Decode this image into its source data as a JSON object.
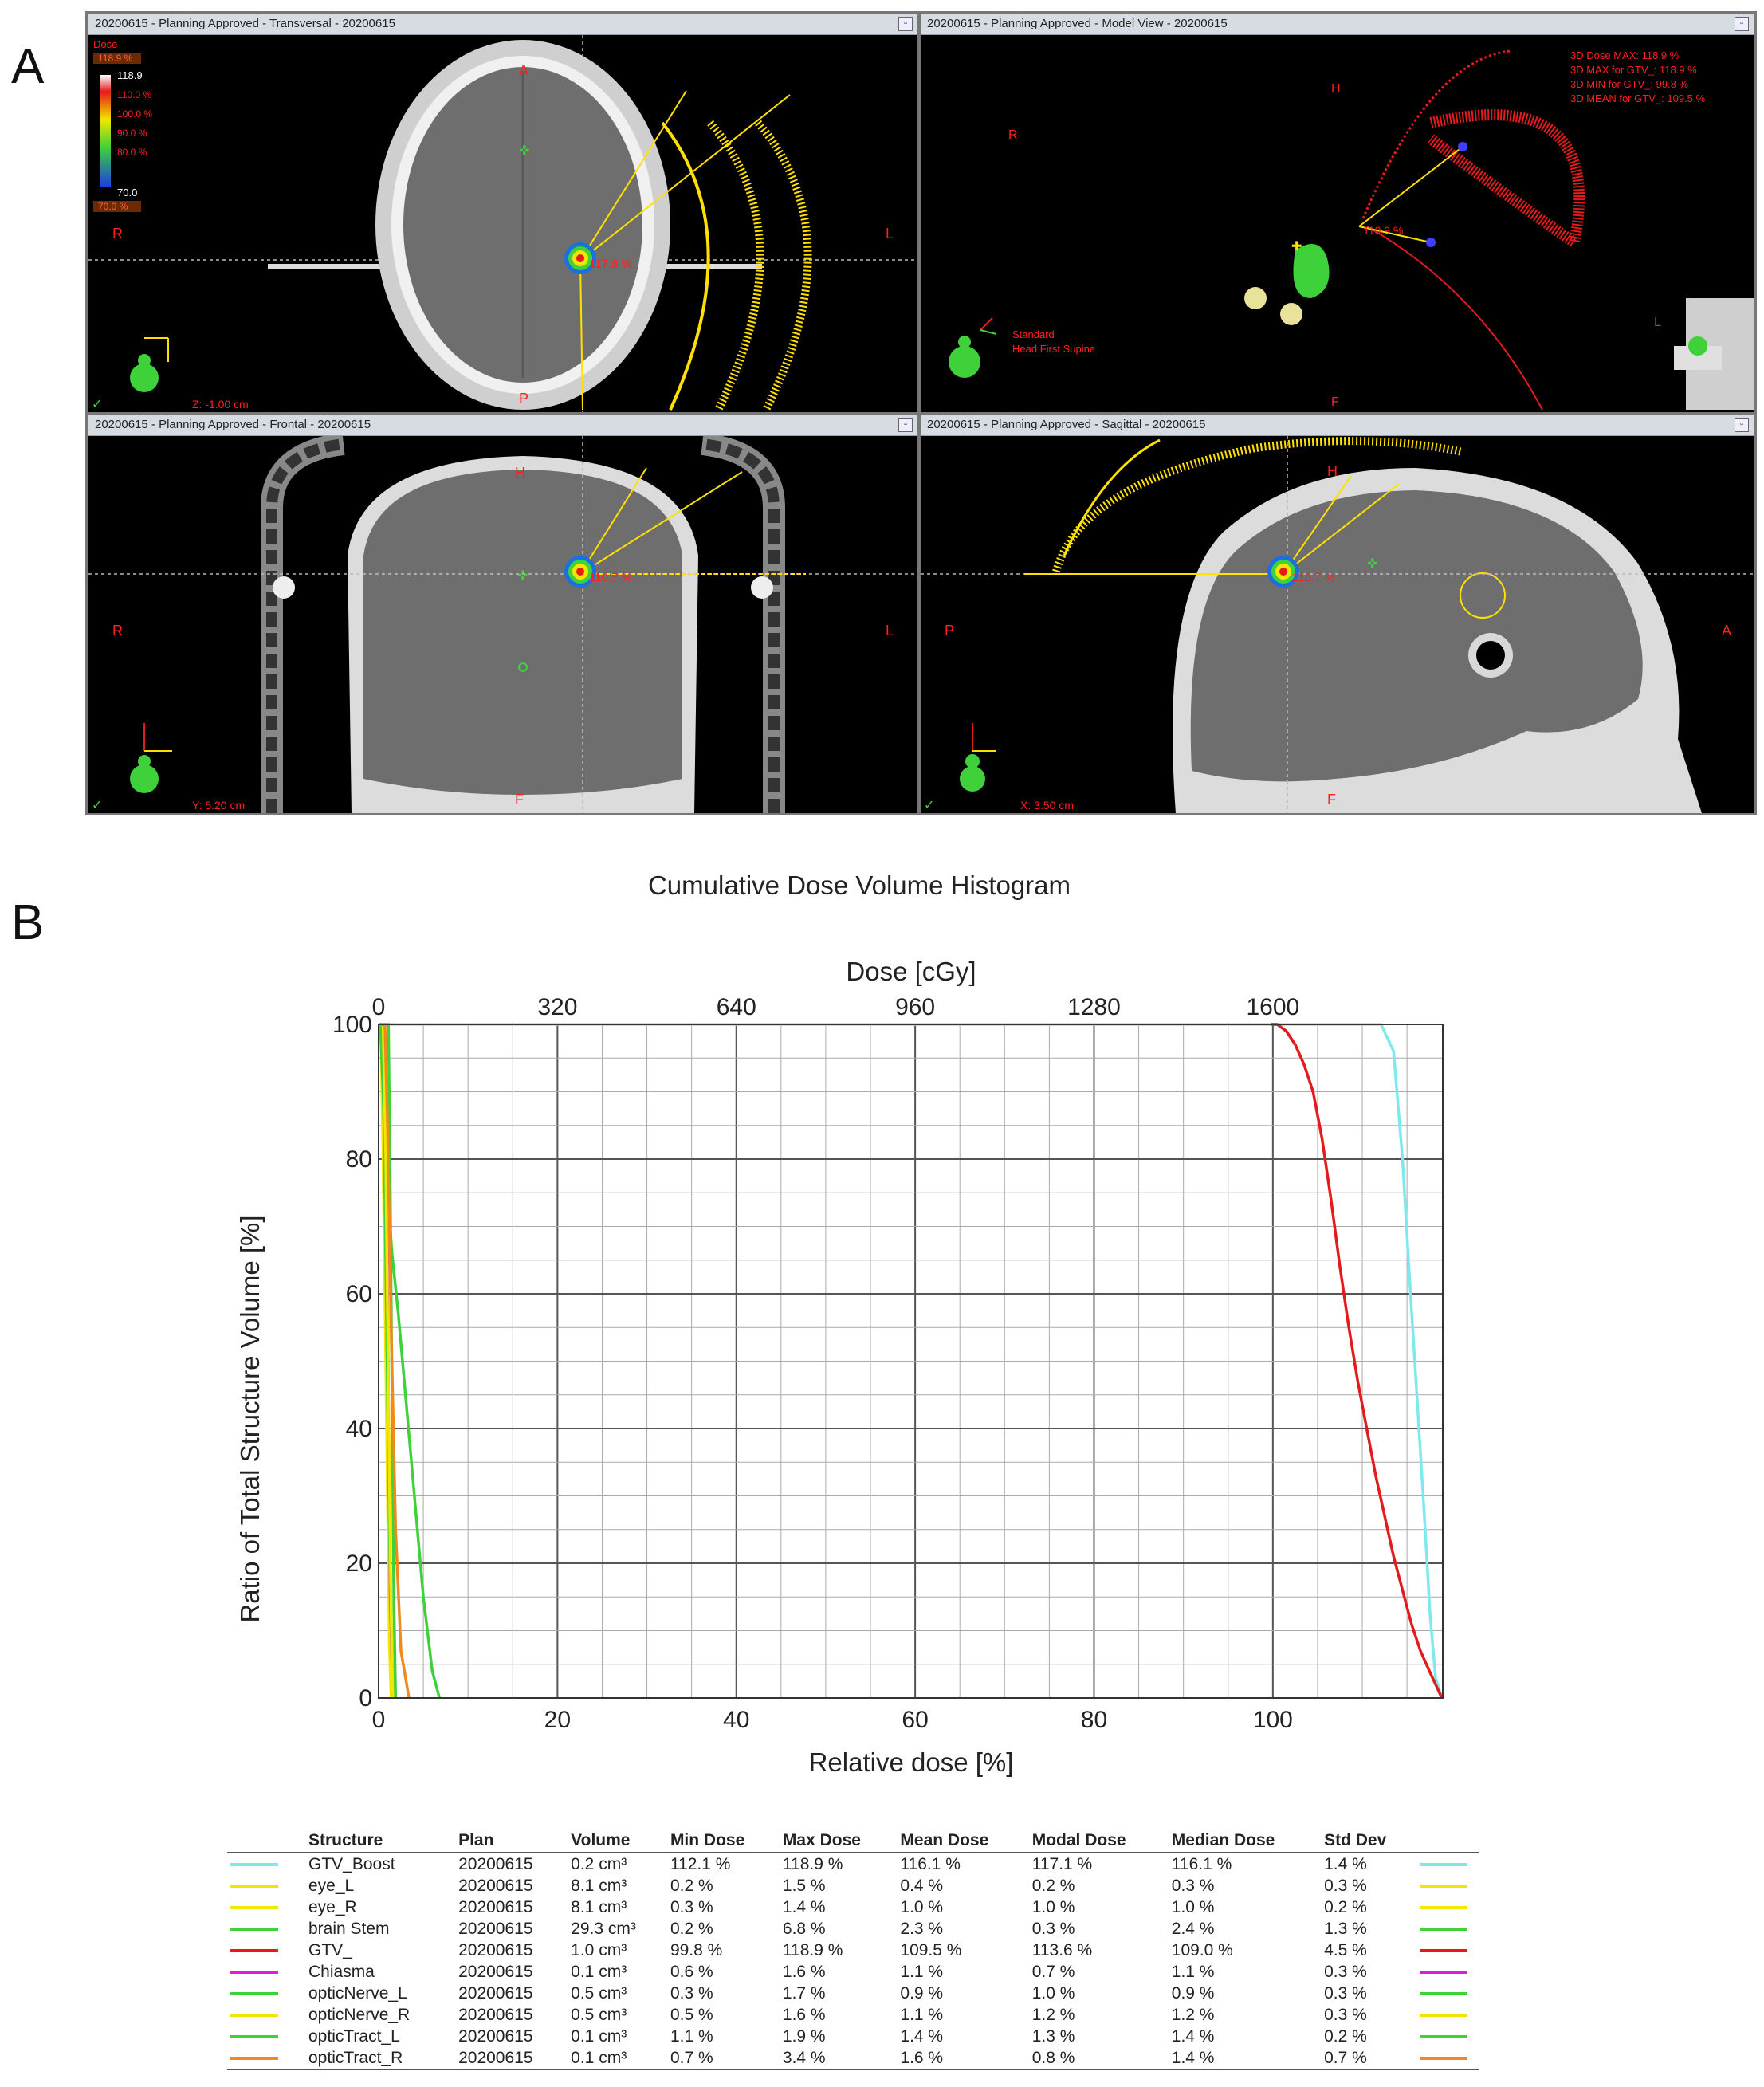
{
  "panel_labels": {
    "a": "A",
    "b": "B"
  },
  "views": [
    {
      "title": "20200615  -  Planning Approved - Transversal - 20200615",
      "orient": [
        "A",
        "P",
        "R",
        "L"
      ],
      "readout": "Z: -1.00 cm",
      "dose_label": "117.8 %"
    },
    {
      "title": "20200615  -  Planning Approved - Model View - 20200615",
      "orient": [
        "H",
        "F",
        "R",
        "L"
      ],
      "readout": "",
      "dose_label": "110.9 %"
    },
    {
      "title": "20200615  -  Planning Approved - Frontal - 20200615",
      "orient": [
        "H",
        "F",
        "R",
        "L"
      ],
      "readout": "Y: 5.20 cm",
      "dose_label": "110.7 %"
    },
    {
      "title": "20200615  -  Planning Approved - Sagittal - 20200615",
      "orient": [
        "H",
        "F",
        "P",
        "A"
      ],
      "readout": "X: 3.50 cm",
      "dose_label": "110.7 %"
    }
  ],
  "dose_legend": {
    "title": "Dose",
    "entries": [
      "118.9 %",
      "118.9",
      "110.0 %",
      "100.0 %",
      "90.0 %",
      "80.0 %",
      "70.0",
      "70.0 %"
    ]
  },
  "model_view_stats": [
    "3D Dose MAX: 118.9 %",
    "3D MAX for GTV_: 118.9 %",
    "3D MIN for GTV_: 99.8 %",
    "3D MEAN for GTV_: 109.5 %"
  ],
  "orientation_text": [
    "Standard",
    "Head First Supine"
  ],
  "colors": {
    "cyan": "#7de8ee",
    "red": "#e41a1c",
    "yellow": "#f2e600",
    "green": "#3fd13a",
    "magenta": "#e21bd6",
    "orange": "#f08a1c"
  },
  "chart_data": {
    "type": "line",
    "title": "Cumulative Dose Volume Histogram",
    "xlabel": "Relative dose [%]",
    "ylabel": "Ratio of Total Structure Volume [%]",
    "x2label": "Dose [cGy]",
    "xlim": [
      0,
      119
    ],
    "ylim": [
      0,
      100
    ],
    "x_ticks": [
      0,
      20,
      40,
      60,
      80,
      100
    ],
    "y_ticks": [
      0,
      20,
      40,
      60,
      80,
      100
    ],
    "x2_ticks": [
      0,
      320,
      640,
      960,
      1280,
      1600
    ],
    "grid": true,
    "series": [
      {
        "name": "GTV_Boost",
        "color": "#7de8ee",
        "x": [
          0,
          112.1,
          113.5,
          114.5,
          115.3,
          116.1,
          116.9,
          117.6,
          118.2,
          118.9
        ],
        "y": [
          100,
          100,
          96,
          80,
          62,
          45,
          28,
          12,
          3,
          0
        ]
      },
      {
        "name": "eye_L",
        "color": "#f2e600",
        "x": [
          0,
          0.2,
          0.3,
          0.5,
          0.8,
          1.1,
          1.3,
          1.5
        ],
        "y": [
          100,
          100,
          96,
          80,
          50,
          20,
          5,
          0
        ]
      },
      {
        "name": "eye_R",
        "color": "#f2e600",
        "x": [
          0,
          0.3,
          0.5,
          0.8,
          1.0,
          1.2,
          1.4
        ],
        "y": [
          100,
          100,
          90,
          60,
          30,
          8,
          0
        ]
      },
      {
        "name": "brain Stem",
        "color": "#3fd13a",
        "x": [
          0,
          0.2,
          0.5,
          1.0,
          1.5,
          2.2,
          3.0,
          4.0,
          5.0,
          6.0,
          6.8
        ],
        "y": [
          100,
          100,
          90,
          75,
          66,
          57,
          45,
          30,
          15,
          4,
          0
        ]
      },
      {
        "name": "GTV_",
        "color": "#e41a1c",
        "x": [
          99.8,
          100.5,
          101.5,
          102.5,
          103.5,
          104.5,
          105.5,
          106.5,
          107.5,
          108.5,
          109.5,
          110.5,
          111.5,
          112.5,
          113.5,
          114.5,
          115.5,
          116.5,
          117.5,
          118.9
        ],
        "y": [
          100,
          100,
          99,
          97,
          94,
          90,
          83,
          74,
          64,
          55,
          47,
          40,
          33,
          27,
          21,
          16,
          11,
          7,
          4,
          0
        ]
      },
      {
        "name": "Chiasma",
        "color": "#e21bd6",
        "x": [
          0,
          0.6,
          0.9,
          1.1,
          1.3,
          1.6
        ],
        "y": [
          100,
          100,
          75,
          45,
          15,
          0
        ]
      },
      {
        "name": "opticNerve_L",
        "color": "#3fd13a",
        "x": [
          0,
          0.3,
          0.6,
          0.9,
          1.2,
          1.5,
          1.7
        ],
        "y": [
          100,
          100,
          85,
          55,
          25,
          6,
          0
        ]
      },
      {
        "name": "opticNerve_R",
        "color": "#f2e600",
        "x": [
          0,
          0.5,
          0.8,
          1.1,
          1.4,
          1.6
        ],
        "y": [
          100,
          100,
          80,
          45,
          12,
          0
        ]
      },
      {
        "name": "opticTract_L",
        "color": "#3fd13a",
        "x": [
          0,
          1.1,
          1.3,
          1.5,
          1.7,
          1.9
        ],
        "y": [
          100,
          100,
          75,
          45,
          15,
          0
        ]
      },
      {
        "name": "opticTract_R",
        "color": "#f08a1c",
        "x": [
          0,
          0.7,
          1.0,
          1.4,
          1.9,
          2.5,
          3.4
        ],
        "y": [
          100,
          100,
          85,
          55,
          25,
          7,
          0
        ]
      }
    ]
  },
  "table": {
    "headers": [
      "Structure",
      "Plan",
      "Volume",
      "Min Dose",
      "Max Dose",
      "Mean Dose",
      "Modal Dose",
      "Median Dose",
      "Std Dev"
    ],
    "rows": [
      {
        "color": "#7de8ee",
        "cells": [
          "GTV_Boost",
          "20200615",
          "0.2 cm³",
          "112.1 %",
          "118.9 %",
          "116.1 %",
          "117.1 %",
          "116.1 %",
          "1.4 %"
        ]
      },
      {
        "color": "#f2e600",
        "cells": [
          "eye_L",
          "20200615",
          "8.1 cm³",
          "0.2 %",
          "1.5 %",
          "0.4 %",
          "0.2 %",
          "0.3 %",
          "0.3 %"
        ]
      },
      {
        "color": "#f2e600",
        "cells": [
          "eye_R",
          "20200615",
          "8.1 cm³",
          "0.3 %",
          "1.4 %",
          "1.0 %",
          "1.0 %",
          "1.0 %",
          "0.2 %"
        ]
      },
      {
        "color": "#3fd13a",
        "cells": [
          "brain Stem",
          "20200615",
          "29.3 cm³",
          "0.2 %",
          "6.8 %",
          "2.3 %",
          "0.3 %",
          "2.4 %",
          "1.3 %"
        ]
      },
      {
        "color": "#e41a1c",
        "cells": [
          "GTV_",
          "20200615",
          "1.0 cm³",
          "99.8 %",
          "118.9 %",
          "109.5 %",
          "113.6 %",
          "109.0 %",
          "4.5 %"
        ]
      },
      {
        "color": "#e21bd6",
        "cells": [
          "Chiasma",
          "20200615",
          "0.1 cm³",
          "0.6 %",
          "1.6 %",
          "1.1 %",
          "0.7 %",
          "1.1 %",
          "0.3 %"
        ]
      },
      {
        "color": "#3fd13a",
        "cells": [
          "opticNerve_L",
          "20200615",
          "0.5 cm³",
          "0.3 %",
          "1.7 %",
          "0.9 %",
          "1.0 %",
          "0.9 %",
          "0.3 %"
        ]
      },
      {
        "color": "#f2e600",
        "cells": [
          "opticNerve_R",
          "20200615",
          "0.5 cm³",
          "0.5 %",
          "1.6 %",
          "1.1 %",
          "1.2 %",
          "1.2 %",
          "0.3 %"
        ]
      },
      {
        "color": "#3fd13a",
        "cells": [
          "opticTract_L",
          "20200615",
          "0.1 cm³",
          "1.1 %",
          "1.9 %",
          "1.4 %",
          "1.3 %",
          "1.4 %",
          "0.2 %"
        ]
      },
      {
        "color": "#f08a1c",
        "cells": [
          "opticTract_R",
          "20200615",
          "0.1 cm³",
          "0.7 %",
          "3.4 %",
          "1.6 %",
          "0.8 %",
          "1.4 %",
          "0.7 %"
        ]
      }
    ]
  }
}
